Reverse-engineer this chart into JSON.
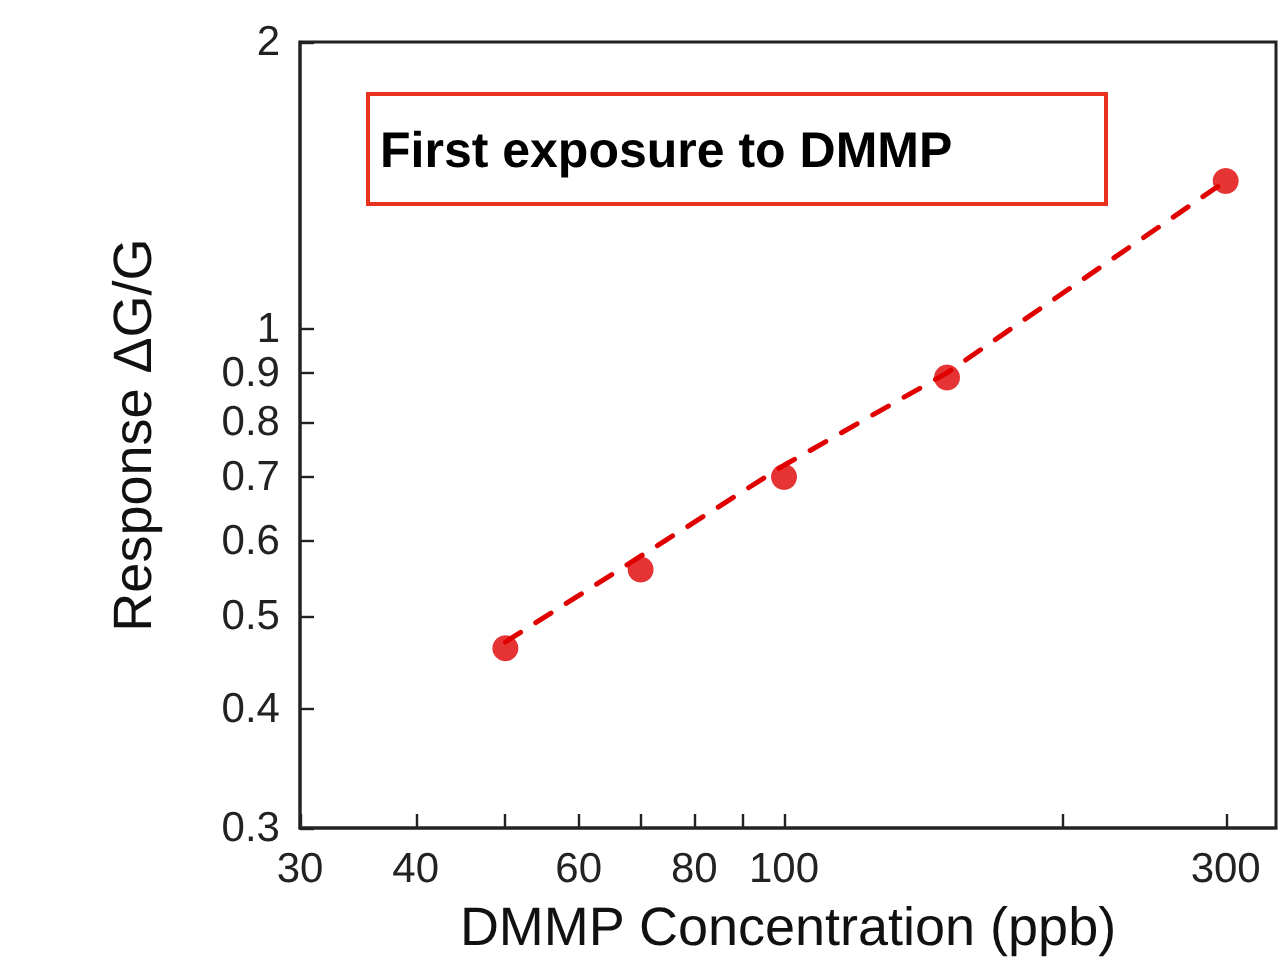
{
  "chart_data": {
    "type": "scatter",
    "xlabel": "DMMP Concentration (ppb)",
    "ylabel": "Response ΔG/G",
    "annotations": [
      "First exposure to DMMP"
    ],
    "log": "xy",
    "xlim": [
      30,
      340
    ],
    "xticks": [
      30,
      40,
      {
        "value": 50,
        "label": null
      },
      60,
      {
        "value": 70,
        "label": null
      },
      80,
      {
        "value": 90,
        "label": null
      },
      100,
      {
        "value": 200,
        "label": null
      },
      300
    ],
    "ylim": [
      0.3,
      2
    ],
    "yticks": [
      0.3,
      0.4,
      0.5,
      0.6,
      0.7,
      0.8,
      0.9,
      1,
      2
    ],
    "series": [
      {
        "type": "line",
        "color": "#e00000",
        "marker": "none",
        "line_style": "dashed",
        "x": [
          50,
          100,
          150,
          300
        ],
        "values": [
          0.47,
          0.72,
          0.9,
          1.43
        ]
      },
      {
        "color": "#e00000",
        "marker": "circle",
        "x": [
          50,
          70,
          100,
          150,
          300
        ],
        "values": [
          0.463,
          0.56,
          0.7,
          0.89,
          1.43
        ]
      }
    ]
  }
}
